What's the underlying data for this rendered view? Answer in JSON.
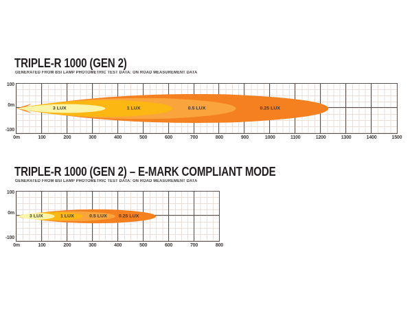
{
  "chart_data": [
    {
      "type": "area",
      "title": "TRIPLE-R 1000 (GEN 2)",
      "subtitle": "GENERATED FROM BSI LAMP PHOTOMETRIC TEST DATA: ON ROAD MEASUREMENT DATA",
      "x_ticks": [
        "0m",
        "100",
        "200",
        "300",
        "400",
        "500",
        "600",
        "700",
        "800",
        "900",
        "1000",
        "1100",
        "1200",
        "1300",
        "1400",
        "1500"
      ],
      "y_ticks": [
        "100",
        "0m",
        "-100"
      ],
      "x_max": 1500,
      "y_range": [
        -100,
        100
      ],
      "grid": {
        "major_step_m": 100,
        "minor_step_m": 25,
        "on": true
      },
      "beams": [
        {
          "label": "0.25 LUX",
          "lux": 0.25,
          "range_m": 1230,
          "half_width_m": 62,
          "color": "#F4801F",
          "label_x_m": 1000
        },
        {
          "label": "0.5 LUX",
          "lux": 0.5,
          "range_m": 865,
          "half_width_m": 45,
          "color": "#F9A43C",
          "label_x_m": 711
        },
        {
          "label": "1 LUX",
          "lux": 1,
          "range_m": 615,
          "half_width_m": 36,
          "color": "#FDB713",
          "label_x_m": 462
        },
        {
          "label": "3 LUX",
          "lux": 3,
          "range_m": 350,
          "half_width_m": 19,
          "color": "#FBF5A9",
          "label_x_m": 170
        }
      ]
    },
    {
      "type": "area",
      "title": "TRIPLE-R 1000 (GEN 2) – E-MARK COMPLIANT MODE",
      "subtitle": "GENERATED FROM BSI LAMP PHOTOMETRIC TEST DATA: ON ROAD MEASUREMENT DATA",
      "x_ticks": [
        "0m",
        "100",
        "200",
        "300",
        "400",
        "500",
        "600",
        "700",
        "800"
      ],
      "y_ticks": [
        "100",
        "0m",
        "-100"
      ],
      "x_max": 800,
      "y_range": [
        -100,
        100
      ],
      "grid": {
        "major_step_m": 100,
        "minor_step_m": 25,
        "on": true
      },
      "beams": [
        {
          "label": "0.25 LUX",
          "lux": 0.25,
          "range_m": 550,
          "half_width_m": 30,
          "color": "#F4801F",
          "label_x_m": 443
        },
        {
          "label": "0.5 LUX",
          "lux": 0.5,
          "range_m": 390,
          "half_width_m": 21,
          "color": "#F9A43C",
          "label_x_m": 322
        },
        {
          "label": "1 LUX",
          "lux": 1,
          "range_m": 262,
          "half_width_m": 18,
          "color": "#FDB713",
          "label_x_m": 200
        },
        {
          "label": "3 LUX",
          "lux": 3,
          "range_m": 150,
          "half_width_m": 14,
          "color": "#FBF5A9",
          "label_x_m": 78
        }
      ]
    }
  ],
  "colors": {
    "title_text": "#231F20",
    "axis_text": "#3B3735",
    "major_grid": "#56514F",
    "minor_grid": "#E8DEDA",
    "background": "#FFFFFF"
  }
}
